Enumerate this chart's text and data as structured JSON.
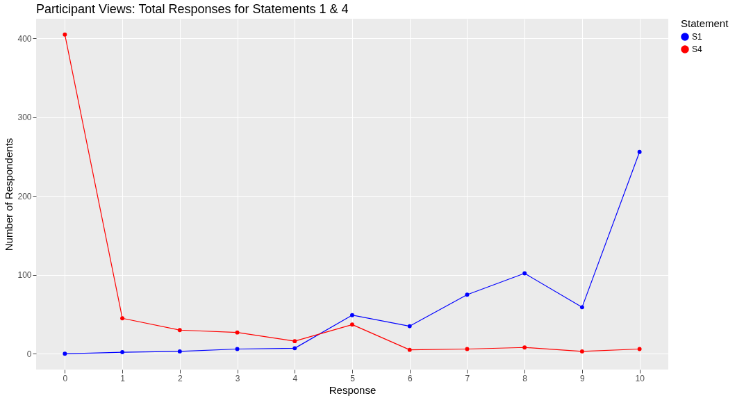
{
  "chart_data": {
    "type": "line",
    "title": "Participant Views: Total Responses for Statements 1 & 4",
    "xlabel": "Response",
    "ylabel": "Number of Respondents",
    "legend_title": "Statement",
    "x": [
      0,
      1,
      2,
      3,
      4,
      5,
      6,
      7,
      8,
      9,
      10
    ],
    "series": [
      {
        "name": "S1",
        "color": "#0000ff",
        "values": [
          0,
          2,
          3,
          6,
          7,
          49,
          35,
          75,
          102,
          59,
          256
        ]
      },
      {
        "name": "S4",
        "color": "#ff0000",
        "values": [
          405,
          45,
          30,
          27,
          16,
          37,
          5,
          6,
          8,
          3,
          6
        ]
      }
    ],
    "xlim": [
      -0.5,
      10.5
    ],
    "xticks": [
      0,
      1,
      2,
      3,
      4,
      5,
      6,
      7,
      8,
      9,
      10
    ],
    "ylim": [
      -20,
      425
    ],
    "yticks": [
      0,
      100,
      200,
      300,
      400
    ],
    "grid": true,
    "legend": "right",
    "marker": "circle",
    "line_style": "solid"
  }
}
